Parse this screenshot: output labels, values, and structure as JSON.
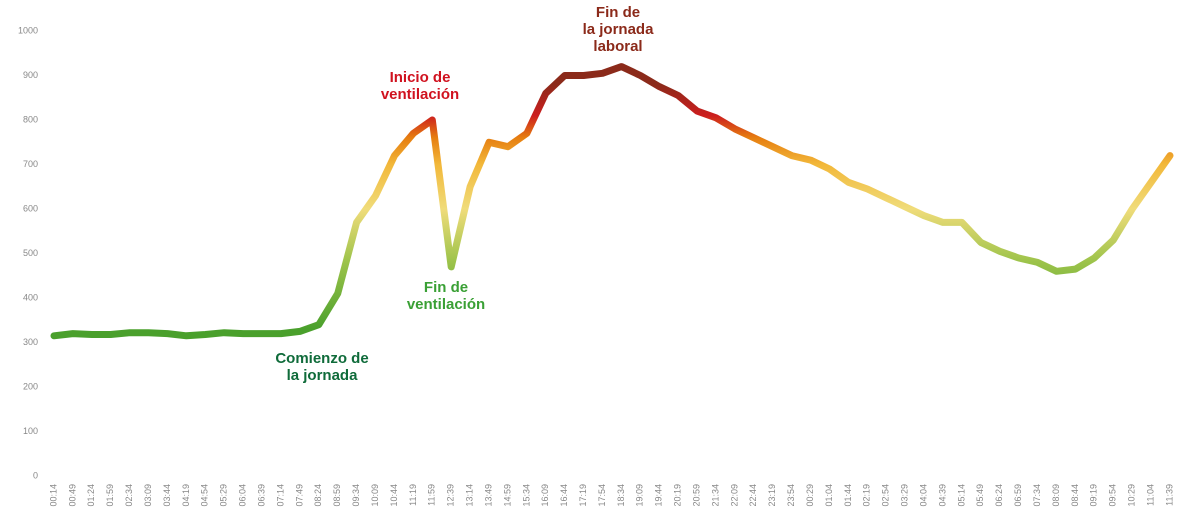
{
  "chart_data": {
    "type": "line",
    "categories": [
      "00:14",
      "00:49",
      "01:24",
      "01:59",
      "02:34",
      "03:09",
      "03:44",
      "04:19",
      "04:54",
      "05:29",
      "06:04",
      "06:39",
      "07:14",
      "07:49",
      "08:24",
      "08:59",
      "09:34",
      "10:09",
      "10:44",
      "11:19",
      "11:59",
      "12:39",
      "13:14",
      "13:49",
      "14:59",
      "15:34",
      "16:09",
      "16:44",
      "17:19",
      "17:54",
      "18:34",
      "19:09",
      "19:44",
      "20:19",
      "20:59",
      "21:34",
      "22:09",
      "22:44",
      "23:19",
      "23:54",
      "00:29",
      "01:04",
      "01:44",
      "02:19",
      "02:54",
      "03:29",
      "04:04",
      "04:39",
      "05:14",
      "05:49",
      "06:24",
      "06:59",
      "07:34",
      "08:09",
      "08:44",
      "09:19",
      "09:54",
      "10:29",
      "11:04",
      "11:39"
    ],
    "values": [
      315,
      320,
      318,
      318,
      322,
      322,
      320,
      315,
      318,
      322,
      320,
      320,
      320,
      325,
      340,
      410,
      570,
      630,
      720,
      770,
      800,
      470,
      650,
      750,
      740,
      770,
      860,
      900,
      900,
      905,
      920,
      900,
      875,
      855,
      820,
      805,
      780,
      760,
      740,
      720,
      710,
      690,
      660,
      645,
      625,
      605,
      585,
      570,
      570,
      525,
      505,
      490,
      480,
      460,
      465,
      490,
      530,
      600,
      660,
      720
    ],
    "color_stops": [
      {
        "value": 330,
        "color": "#4aa02c"
      },
      {
        "value": 480,
        "color": "#9cc34a"
      },
      {
        "value": 600,
        "color": "#f0dc7a"
      },
      {
        "value": 700,
        "color": "#f2b83a"
      },
      {
        "value": 760,
        "color": "#e67e10"
      },
      {
        "value": 810,
        "color": "#cc1e1e"
      },
      {
        "value": 880,
        "color": "#8b2a1a"
      }
    ],
    "ylim": [
      0,
      1000
    ],
    "yticks": [
      0,
      100,
      200,
      300,
      400,
      500,
      600,
      700,
      800,
      900,
      1000
    ],
    "grid": false,
    "annotations": [
      {
        "lines": [
          "Comienzo de",
          "la jornada"
        ],
        "color": "#0f6b3a"
      },
      {
        "lines": [
          "Inicio de",
          "ventilación"
        ],
        "color": "#d0121f"
      },
      {
        "lines": [
          "Fin de",
          "ventilación"
        ],
        "color": "#3aa035"
      },
      {
        "lines": [
          "Fin de",
          "la jornada",
          "laboral"
        ],
        "color": "#8b2a1a"
      }
    ]
  }
}
